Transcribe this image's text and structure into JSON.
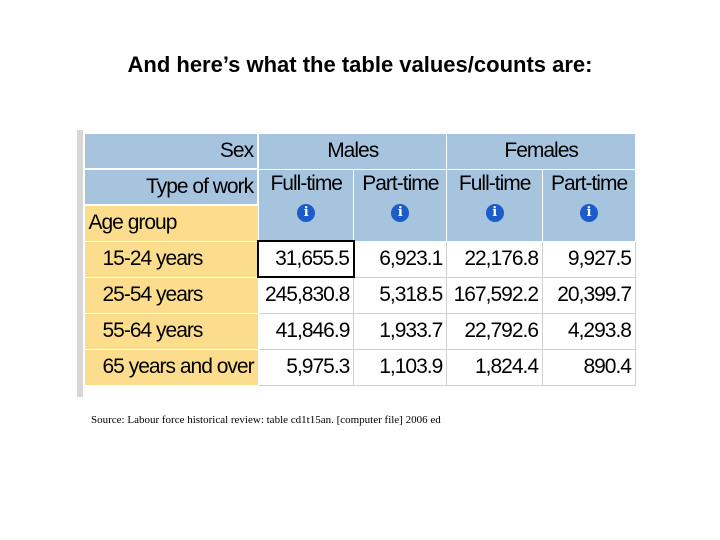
{
  "title": "And here’s what the table values/counts are:",
  "table": {
    "sex_label": "Sex",
    "sexes": [
      "Males",
      "Females"
    ],
    "type_of_work_label": "Type of work",
    "work_types": [
      "Full-time",
      "Part-time",
      "Full-time",
      "Part-time"
    ],
    "age_group_label": "Age group",
    "info_icon": "i",
    "rows": [
      {
        "age": "15-24 years",
        "values": [
          "31,655.5",
          "6,923.1",
          "22,176.8",
          "9,927.5"
        ]
      },
      {
        "age": "25-54 years",
        "values": [
          "245,830.8",
          "5,318.5",
          "167,592.2",
          "20,399.7"
        ]
      },
      {
        "age": "55-64 years",
        "values": [
          "41,846.9",
          "1,933.7",
          "22,792.6",
          "4,293.8"
        ]
      },
      {
        "age": "65 years and over",
        "values": [
          "5,975.3",
          "1,103.9",
          "1,824.4",
          "890.4"
        ]
      }
    ]
  },
  "source": "Source: Labour force historical review: table cd1t15an. [computer file] 2006 ed"
}
